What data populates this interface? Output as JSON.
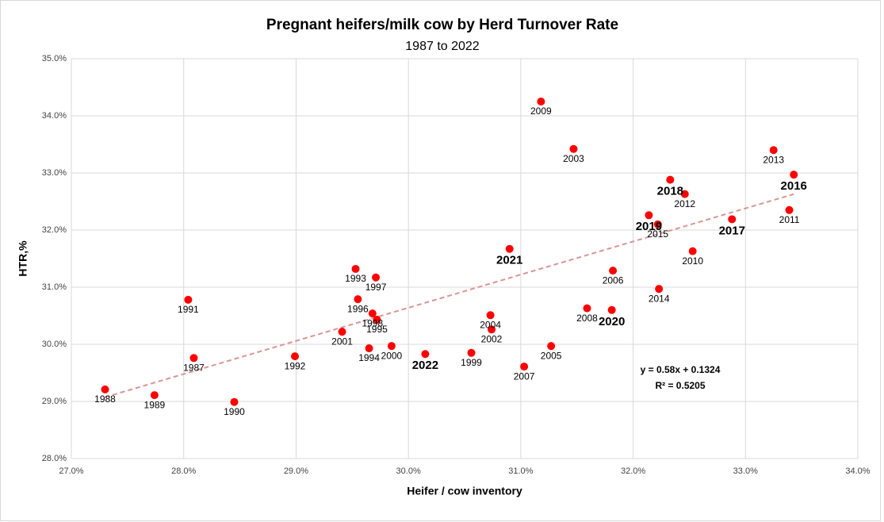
{
  "chart_data": {
    "type": "scatter",
    "title": "Pregnant heifers/milk cow by Herd Turnover Rate",
    "subtitle": "1987 to 2022",
    "x_label": "Heifer / cow inventory",
    "y_label": "HTR,%",
    "color": "#ff0000",
    "grid": true,
    "labels": [
      "1987",
      "1988",
      "1989",
      "1990",
      "1991",
      "1992",
      "1993",
      "1994",
      "1995",
      "1996",
      "1997",
      "1998",
      "1999",
      "2000",
      "2001",
      "2002",
      "2003",
      "2004",
      "2005",
      "2006",
      "2007",
      "2008",
      "2009",
      "2010",
      "2011",
      "2012",
      "2013",
      "2014",
      "2015",
      "2016",
      "2017",
      "2018",
      "2019",
      "2020",
      "2021",
      "2022"
    ],
    "x": [
      28.09,
      27.3,
      27.74,
      28.45,
      28.04,
      28.99,
      29.53,
      29.65,
      29.72,
      29.55,
      29.71,
      29.68,
      30.56,
      29.85,
      29.41,
      30.74,
      31.47,
      30.73,
      31.27,
      31.82,
      31.03,
      31.59,
      31.18,
      32.53,
      33.39,
      32.46,
      33.25,
      32.23,
      32.22,
      33.43,
      32.88,
      32.33,
      32.14,
      31.81,
      30.9,
      30.15
    ],
    "y": [
      29.76,
      29.21,
      29.11,
      28.99,
      30.78,
      29.79,
      31.32,
      29.93,
      30.43,
      30.79,
      31.17,
      30.54,
      29.85,
      29.97,
      30.22,
      30.26,
      33.42,
      30.51,
      29.97,
      31.29,
      29.61,
      30.63,
      34.25,
      31.63,
      32.35,
      32.63,
      33.4,
      30.97,
      32.1,
      32.97,
      32.19,
      32.88,
      32.26,
      30.6,
      31.67,
      29.83
    ],
    "bold": [
      false,
      false,
      false,
      false,
      false,
      false,
      false,
      false,
      false,
      false,
      false,
      false,
      false,
      false,
      false,
      false,
      false,
      false,
      false,
      false,
      false,
      false,
      false,
      false,
      false,
      false,
      false,
      false,
      false,
      true,
      true,
      true,
      true,
      true,
      true,
      true
    ],
    "trendline": {
      "slope": 0.58,
      "intercept": 13.24,
      "color": "#d99594",
      "equation": "y = 0.58x + 0.1324",
      "r_squared": "R² = 0.5205"
    },
    "xlim": [
      27,
      34
    ],
    "ylim": [
      28,
      35
    ],
    "xticks": [
      {
        "value": 27,
        "label": "27.0%"
      },
      {
        "value": 28,
        "label": "28.0%"
      },
      {
        "value": 29,
        "label": "29.0%"
      },
      {
        "value": 30,
        "label": "30.0%"
      },
      {
        "value": 31,
        "label": "31.0%"
      },
      {
        "value": 32,
        "label": "32.0%"
      },
      {
        "value": 33,
        "label": "33.0%"
      },
      {
        "value": 34,
        "label": "34.0%"
      }
    ],
    "yticks": [
      {
        "value": 28,
        "label": "28.0%"
      },
      {
        "value": 29,
        "label": "29.0%"
      },
      {
        "value": 30,
        "label": "30.0%"
      },
      {
        "value": 31,
        "label": "31.0%"
      },
      {
        "value": 32,
        "label": "32.0%"
      },
      {
        "value": 33,
        "label": "33.0%"
      },
      {
        "value": 34,
        "label": "34.0%"
      },
      {
        "value": 35,
        "label": "35.0%"
      }
    ]
  }
}
